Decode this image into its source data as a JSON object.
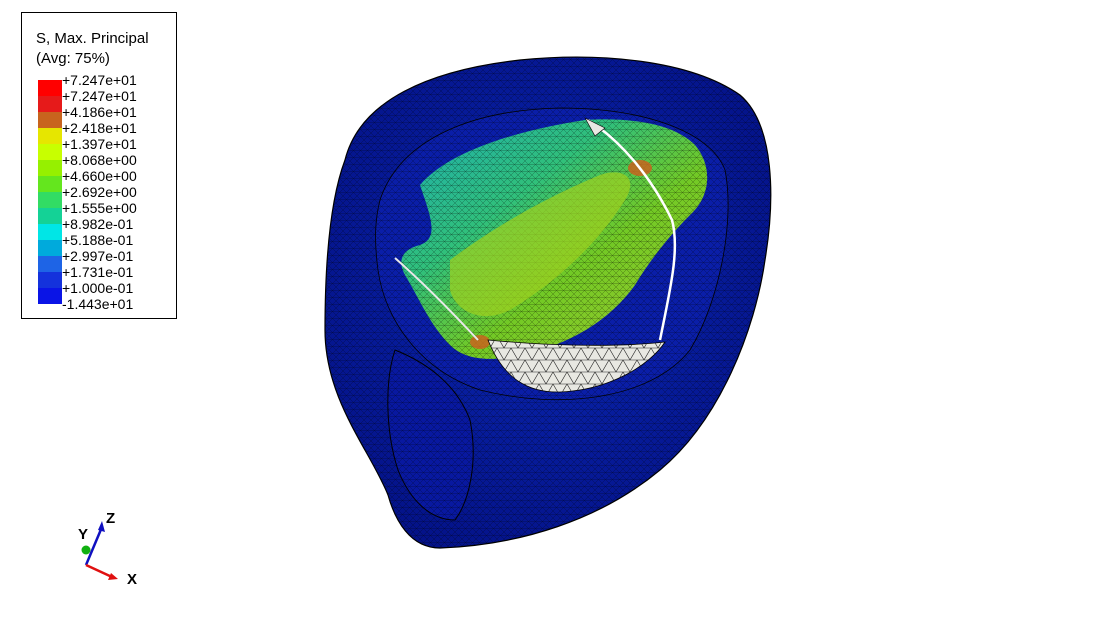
{
  "legend": {
    "title_line1": "S, Max. Principal",
    "title_line2": "(Avg: 75%)",
    "entries": [
      {
        "value": "+7.247e+01",
        "color": "#ff0000"
      },
      {
        "value": "+7.247e+01",
        "color": "#e61a1a"
      },
      {
        "value": "+4.186e+01",
        "color": "#c8641e"
      },
      {
        "value": "+2.418e+01",
        "color": "#e6e600"
      },
      {
        "value": "+1.397e+01",
        "color": "#c8ff00"
      },
      {
        "value": "+8.068e+00",
        "color": "#96f000"
      },
      {
        "value": "+4.660e+00",
        "color": "#64e61e"
      },
      {
        "value": "+2.692e+00",
        "color": "#32dc64"
      },
      {
        "value": "+1.555e+00",
        "color": "#14d296"
      },
      {
        "value": "+8.982e-01",
        "color": "#00e6e6"
      },
      {
        "value": "+5.188e-01",
        "color": "#00aadc"
      },
      {
        "value": "+2.997e-01",
        "color": "#1e64e6"
      },
      {
        "value": "+1.731e-01",
        "color": "#1432dc"
      },
      {
        "value": "+1.000e-01",
        "color": "#0a14e6"
      },
      {
        "value": "-1.443e+01",
        "color": "#0000ff"
      }
    ]
  },
  "triad": {
    "x_label": "X",
    "y_label": "Y",
    "z_label": "Z",
    "x_color": "#e01010",
    "y_color": "#10b010",
    "z_color": "#1010c0"
  },
  "colors": {
    "model_base": "#061a9c",
    "model_edge": "#000000",
    "stress_green": "#7ec81e",
    "stress_cyan": "#1eb4b4",
    "void_fill": "#e8e8e2"
  }
}
